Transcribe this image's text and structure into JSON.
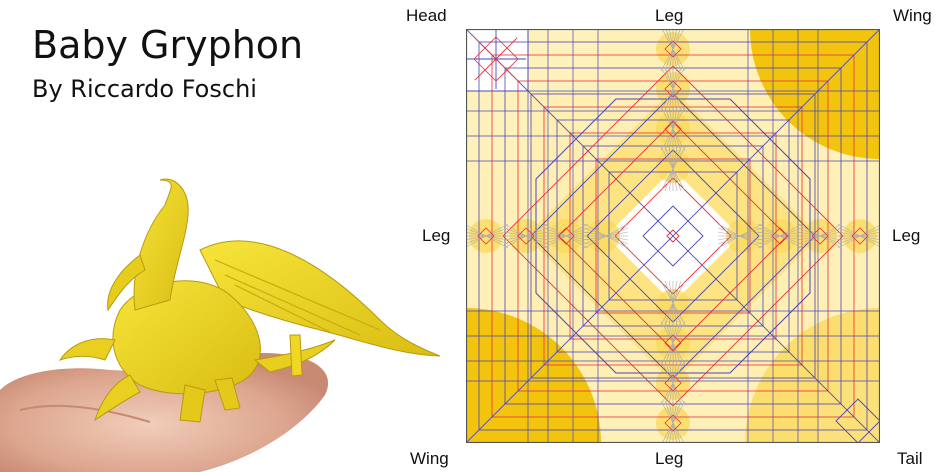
{
  "header": {
    "title": "Baby Gryphon",
    "author": "By Riccardo Foschi"
  },
  "crease_pattern": {
    "labels": {
      "top_left": "Head",
      "top_center": "Leg",
      "top_right": "Wing",
      "left": "Leg",
      "right": "Leg",
      "bottom_left": "Wing",
      "bottom_center": "Leg",
      "bottom_right": "Tail"
    },
    "colors": {
      "pale": "#ffeeb0",
      "mid": "#fbd95a",
      "deep": "#f2c40e",
      "mountain": "#e8323c",
      "valley": "#4a46b8",
      "hinge": "#aaaaaa",
      "border": "#555555"
    }
  },
  "photo": {
    "subject": "yellow-origami-gryphon-on-hand",
    "paper_color": "#f0dc2a",
    "skin_color": "#e9b9a4"
  }
}
